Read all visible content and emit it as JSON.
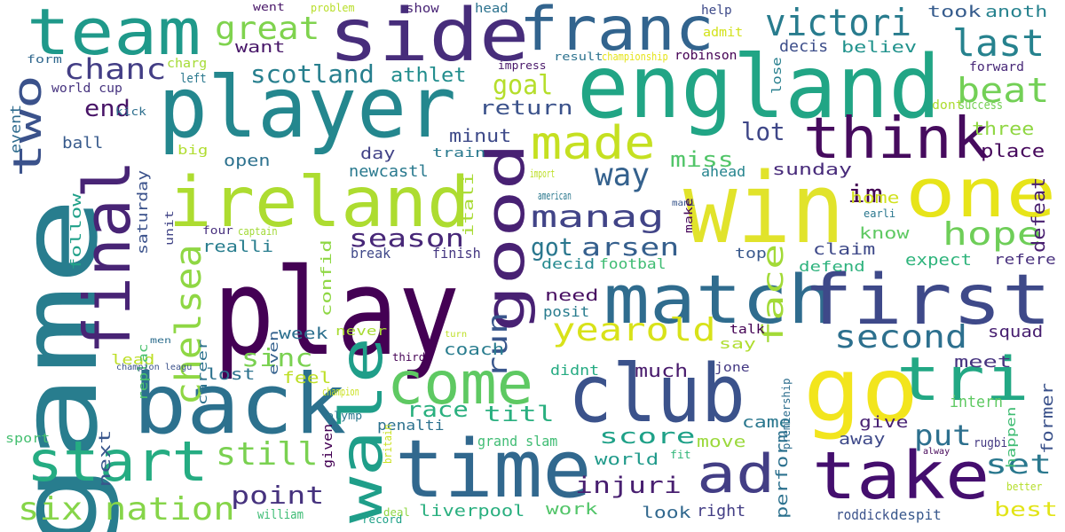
{
  "words": [
    {
      "text": "play",
      "color": "#440154"
    },
    {
      "text": "player",
      "color": "#24878e"
    },
    {
      "text": "england",
      "color": "#21a585"
    },
    {
      "text": "win",
      "color": "#e1e32b"
    },
    {
      "text": "game",
      "color": "#287d8e"
    },
    {
      "text": "match",
      "color": "#2f6c8e"
    },
    {
      "text": "side",
      "color": "#472d7b"
    },
    {
      "text": "team",
      "color": "#1f998a"
    },
    {
      "text": "franc",
      "color": "#32648e"
    },
    {
      "text": "back",
      "color": "#2c718e"
    },
    {
      "text": "club",
      "color": "#3b528b"
    },
    {
      "text": "time",
      "color": "#31688e"
    },
    {
      "text": "go",
      "color": "#f2e51d"
    },
    {
      "text": "first",
      "color": "#3e4989"
    },
    {
      "text": "one",
      "color": "#e7e419"
    },
    {
      "text": "ireland",
      "color": "#addc30"
    },
    {
      "text": "take",
      "color": "#440e6e"
    },
    {
      "text": "think",
      "color": "#460b5e"
    },
    {
      "text": "final",
      "color": "#482475"
    },
    {
      "text": "tri",
      "color": "#22a884"
    },
    {
      "text": "wale",
      "color": "#1f9e89"
    },
    {
      "text": "come",
      "color": "#5ec962"
    },
    {
      "text": "start",
      "color": "#25ac82"
    },
    {
      "text": "good",
      "color": "#482173"
    },
    {
      "text": "ad",
      "color": "#433e85"
    },
    {
      "text": "two",
      "color": "#3b528b"
    },
    {
      "text": "made",
      "color": "#c5e021"
    },
    {
      "text": "victori",
      "color": "#287c8e"
    },
    {
      "text": "last",
      "color": "#26828e"
    },
    {
      "text": "beat",
      "color": "#73d056"
    },
    {
      "text": "chelsea",
      "color": "#8fd744"
    },
    {
      "text": "second",
      "color": "#2d708e"
    },
    {
      "text": "still",
      "color": "#7ad151"
    },
    {
      "text": "six nation",
      "color": "#86d549"
    },
    {
      "text": "yearold",
      "color": "#d8e219"
    },
    {
      "text": "hope",
      "color": "#6ece58"
    },
    {
      "text": "way",
      "color": "#34618d"
    },
    {
      "text": "great",
      "color": "#7fd34e"
    },
    {
      "text": "manag",
      "color": "#414487"
    },
    {
      "text": "chanc",
      "color": "#433e85"
    },
    {
      "text": "scotland",
      "color": "#277f8e"
    },
    {
      "text": "season",
      "color": "#482878"
    },
    {
      "text": "arsen",
      "color": "#355f8d"
    },
    {
      "text": "got",
      "color": "#2a778e"
    },
    {
      "text": "face",
      "color": "#a2da37"
    },
    {
      "text": "run",
      "color": "#39568c"
    },
    {
      "text": "goal",
      "color": "#b5de2b"
    },
    {
      "text": "point",
      "color": "#46327e"
    },
    {
      "text": "sinc",
      "color": "#7ad151"
    },
    {
      "text": "put",
      "color": "#2d708e"
    },
    {
      "text": "set",
      "color": "#2a788e"
    },
    {
      "text": "im",
      "color": "#440154"
    },
    {
      "text": "lot",
      "color": "#3f4788"
    },
    {
      "text": "miss",
      "color": "#52c569"
    },
    {
      "text": "end",
      "color": "#481467"
    },
    {
      "text": "race",
      "color": "#2ab07f"
    },
    {
      "text": "titl",
      "color": "#29af7f"
    },
    {
      "text": "score",
      "color": "#1fa188"
    },
    {
      "text": "injuri",
      "color": "#481f70"
    },
    {
      "text": "athlet",
      "color": "#228d8d"
    },
    {
      "text": "return",
      "color": "#3b528b"
    },
    {
      "text": "want",
      "color": "#481769"
    },
    {
      "text": "decis",
      "color": "#3d4e8a"
    },
    {
      "text": "believ",
      "color": "#20928c"
    },
    {
      "text": "took",
      "color": "#365c8d"
    },
    {
      "text": "anoth",
      "color": "#26828e"
    },
    {
      "text": "three",
      "color": "#90d743"
    },
    {
      "text": "place",
      "color": "#46085c"
    },
    {
      "text": "minut",
      "color": "#3e4a89"
    },
    {
      "text": "day",
      "color": "#414287"
    },
    {
      "text": "sunday",
      "color": "#472a7a"
    },
    {
      "text": "ahead",
      "color": "#25848e"
    },
    {
      "text": "open",
      "color": "#2c718e"
    },
    {
      "text": "ball",
      "color": "#375a8c"
    },
    {
      "text": "newcastl",
      "color": "#29798e"
    },
    {
      "text": "home",
      "color": "#d0e11c"
    },
    {
      "text": "know",
      "color": "#5ec962"
    },
    {
      "text": "defeat",
      "color": "#481f70"
    },
    {
      "text": "claim",
      "color": "#3e4989"
    },
    {
      "text": "saturday",
      "color": "#3b528b"
    },
    {
      "text": "follow",
      "color": "#1fa088"
    },
    {
      "text": "realli",
      "color": "#287d8e"
    },
    {
      "text": "itali",
      "color": "#a8db34"
    },
    {
      "text": "confid",
      "color": "#8fd744"
    },
    {
      "text": "break",
      "color": "#3f4889"
    },
    {
      "text": "finish",
      "color": "#453781"
    },
    {
      "text": "top",
      "color": "#38588c"
    },
    {
      "text": "expect",
      "color": "#2fb47c"
    },
    {
      "text": "refere",
      "color": "#472f7d"
    },
    {
      "text": "decid",
      "color": "#23898e"
    },
    {
      "text": "footbal",
      "color": "#3fbc73"
    },
    {
      "text": "defend",
      "color": "#2db27d"
    },
    {
      "text": "need",
      "color": "#470e61"
    },
    {
      "text": "posit",
      "color": "#287c8e"
    },
    {
      "text": "week",
      "color": "#2d708e"
    },
    {
      "text": "say",
      "color": "#b0dd2f"
    },
    {
      "text": "squad",
      "color": "#482071"
    },
    {
      "text": "meet",
      "color": "#46337f"
    },
    {
      "text": "lost",
      "color": "#2c728e"
    },
    {
      "text": "feel",
      "color": "#bddf26"
    },
    {
      "text": "coach",
      "color": "#287c8e"
    },
    {
      "text": "didnt",
      "color": "#25ab82"
    },
    {
      "text": "much",
      "color": "#481a6c"
    },
    {
      "text": "came",
      "color": "#2a778e"
    },
    {
      "text": "give",
      "color": "#482173"
    },
    {
      "text": "intern",
      "color": "#5ec962"
    },
    {
      "text": "away",
      "color": "#3e4989"
    },
    {
      "text": "perform",
      "color": "#2c718e"
    },
    {
      "text": "move",
      "color": "#9bd93c"
    },
    {
      "text": "world",
      "color": "#1f9a8a"
    },
    {
      "text": "grand slam",
      "color": "#3fbc73"
    },
    {
      "text": "penalti",
      "color": "#2c718e"
    },
    {
      "text": "liverpool",
      "color": "#29af7f"
    },
    {
      "text": "work",
      "color": "#52c569"
    },
    {
      "text": "look",
      "color": "#31688e"
    },
    {
      "text": "right",
      "color": "#433e85"
    },
    {
      "text": "roddick",
      "color": "#3b528b"
    },
    {
      "text": "despit",
      "color": "#38588c"
    },
    {
      "text": "best",
      "color": "#e2e418"
    },
    {
      "text": "next",
      "color": "#39568c"
    },
    {
      "text": "lead",
      "color": "#bddf26"
    },
    {
      "text": "replac",
      "color": "#4ac16d"
    },
    {
      "text": "career",
      "color": "#2c728e"
    },
    {
      "text": "william",
      "color": "#3dbc74"
    },
    {
      "text": "never",
      "color": "#a8db34"
    },
    {
      "text": "even",
      "color": "#34618d"
    },
    {
      "text": "sport",
      "color": "#44bf70"
    },
    {
      "text": "former",
      "color": "#3b528b"
    },
    {
      "text": "happen",
      "color": "#3fbc73"
    },
    {
      "text": "premiership",
      "color": "#2e6e8e"
    },
    {
      "text": "rugbi",
      "color": "#443983"
    },
    {
      "text": "jone",
      "color": "#443983"
    },
    {
      "text": "talk",
      "color": "#440154"
    },
    {
      "text": "event",
      "color": "#2f6b8e"
    },
    {
      "text": "form",
      "color": "#31688e"
    },
    {
      "text": "world cup",
      "color": "#46337f"
    },
    {
      "text": "kick",
      "color": "#2e6f8e"
    },
    {
      "text": "big",
      "color": "#b0dd2f"
    },
    {
      "text": "left",
      "color": "#2a788e"
    },
    {
      "text": "charg",
      "color": "#a5db36"
    },
    {
      "text": "train",
      "color": "#29798e"
    },
    {
      "text": "went",
      "color": "#481668"
    },
    {
      "text": "problem",
      "color": "#b8de29"
    },
    {
      "text": "show",
      "color": "#482475"
    },
    {
      "text": "head",
      "color": "#2c728e"
    },
    {
      "text": "help",
      "color": "#3e4a89"
    },
    {
      "text": "admit",
      "color": "#d2e21b"
    },
    {
      "text": "result",
      "color": "#2c728e"
    },
    {
      "text": "championship",
      "color": "#e5e419"
    },
    {
      "text": "robinson",
      "color": "#440154"
    },
    {
      "text": "impress",
      "color": "#481769"
    },
    {
      "text": "lose",
      "color": "#277f8e"
    },
    {
      "text": "forward",
      "color": "#482878"
    },
    {
      "text": "dont",
      "color": "#addc30"
    },
    {
      "text": "success",
      "color": "#75d054"
    },
    {
      "text": "import",
      "color": "#bddf26"
    },
    {
      "text": "american",
      "color": "#2a788e"
    },
    {
      "text": "mani",
      "color": "#39568c"
    },
    {
      "text": "make",
      "color": "#46075a"
    },
    {
      "text": "earli",
      "color": "#2a778e"
    },
    {
      "text": "four",
      "color": "#472f7d"
    },
    {
      "text": "captain",
      "color": "#a2da37"
    },
    {
      "text": "unit",
      "color": "#414487"
    },
    {
      "text": "men",
      "color": "#2e6e8e"
    },
    {
      "text": "turn",
      "color": "#bddf26"
    },
    {
      "text": "champion",
      "color": "#cae11f"
    },
    {
      "text": "champion leagu",
      "color": "#3b528b"
    },
    {
      "text": "third",
      "color": "#440154"
    },
    {
      "text": "olymp",
      "color": "#2a788e"
    },
    {
      "text": "given",
      "color": "#440154"
    },
    {
      "text": "britain",
      "color": "#cae11f"
    },
    {
      "text": "deal",
      "color": "#8fd744"
    },
    {
      "text": "record",
      "color": "#1fa188"
    },
    {
      "text": "fit",
      "color": "#32b67a"
    },
    {
      "text": "alway",
      "color": "#46075a"
    },
    {
      "text": "better",
      "color": "#b5de2b"
    }
  ]
}
